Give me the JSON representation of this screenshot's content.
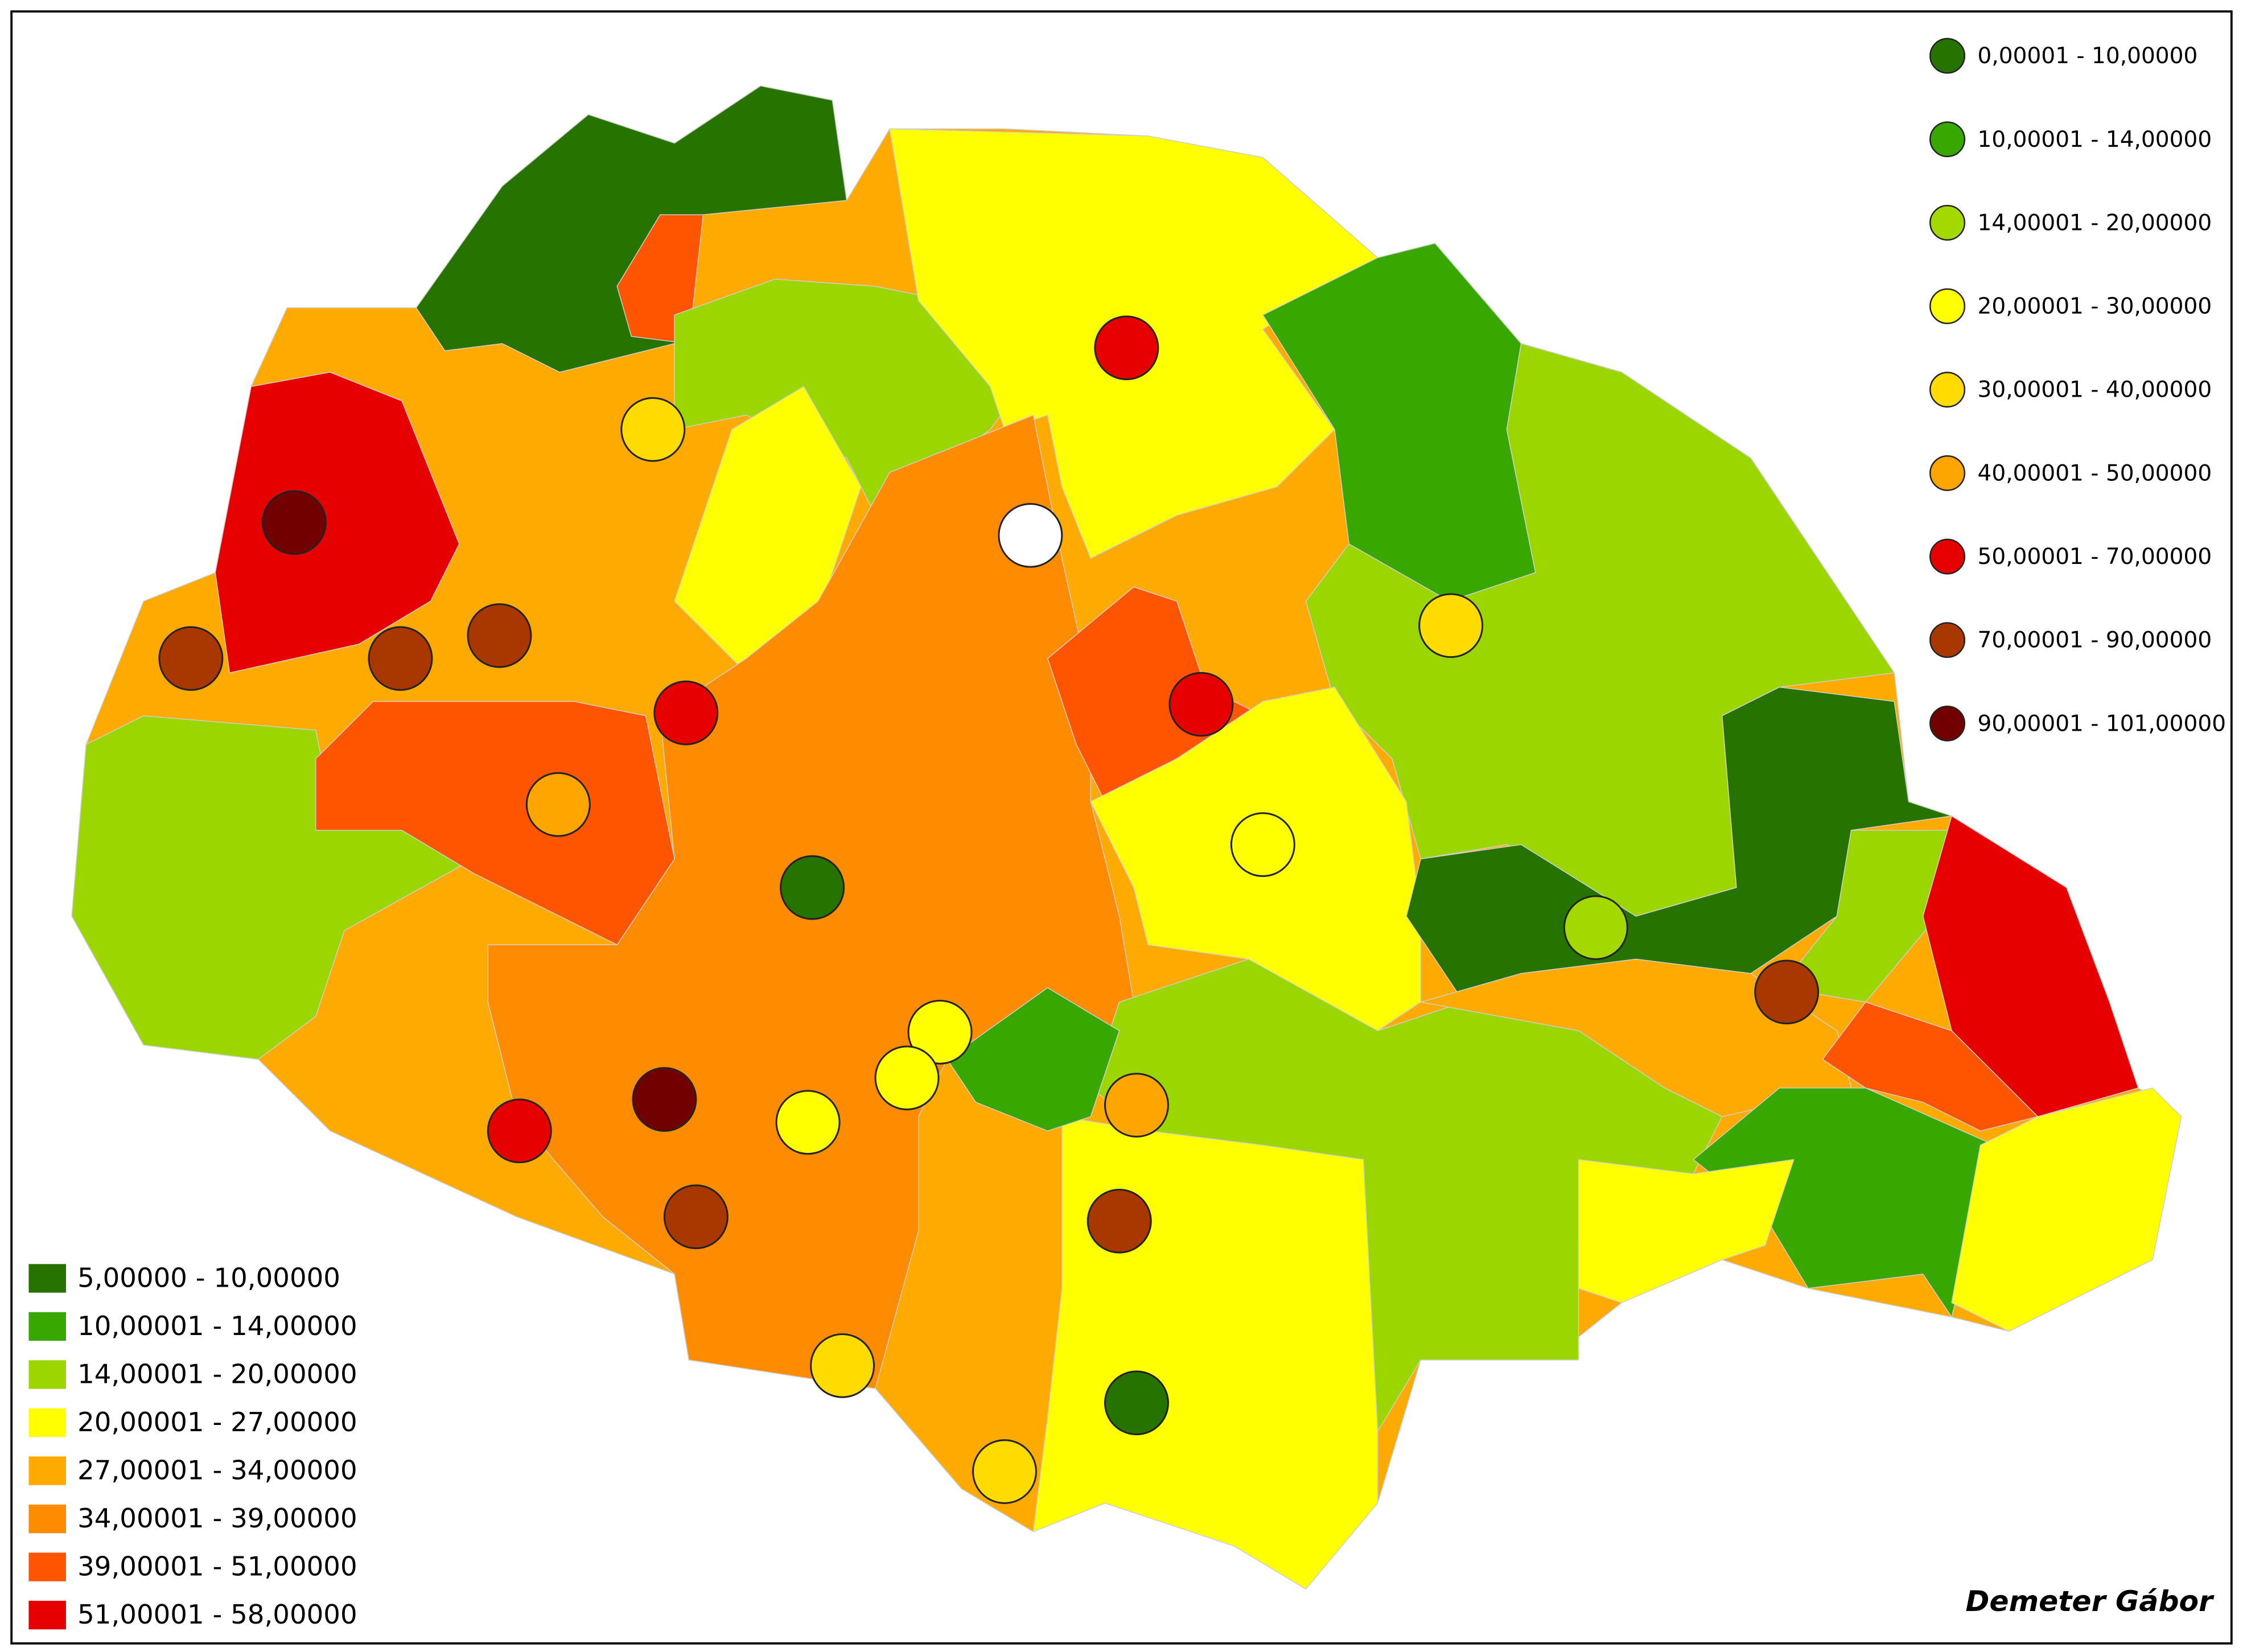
{
  "point_legend": {
    "items": [
      {
        "label": "0,00001 - 10,00000",
        "color": "#267300"
      },
      {
        "label": "10,00001 - 14,00000",
        "color": "#38a800"
      },
      {
        "label": "14,00001 - 20,00000",
        "color": "#a3d900"
      },
      {
        "label": "20,00001 - 30,00000",
        "color": "#ffff00"
      },
      {
        "label": "30,00001 - 40,00000",
        "color": "#ffdb00"
      },
      {
        "label": "40,00001 - 50,00000",
        "color": "#ffa500"
      },
      {
        "label": "50,00001 - 70,00000",
        "color": "#e60000"
      },
      {
        "label": "70,00001 - 90,00000",
        "color": "#a83800"
      },
      {
        "label": "90,00001 - 101,00000",
        "color": "#730000"
      }
    ]
  },
  "area_legend": {
    "items": [
      {
        "label": "5,00000 - 10,00000",
        "color": "#267300"
      },
      {
        "label": "10,00001 - 14,00000",
        "color": "#38a800"
      },
      {
        "label": "14,00001 - 20,00000",
        "color": "#9cd600"
      },
      {
        "label": "20,00001 - 27,00000",
        "color": "#ffff00"
      },
      {
        "label": "27,00001 - 34,00000",
        "color": "#ffaa00"
      },
      {
        "label": "34,00001 - 39,00000",
        "color": "#ff8c00"
      },
      {
        "label": "39,00001 - 51,00000",
        "color": "#ff5500"
      },
      {
        "label": "51,00001 - 58,00000",
        "color": "#e60000"
      }
    ]
  },
  "credit": "Demeter Gábor"
}
